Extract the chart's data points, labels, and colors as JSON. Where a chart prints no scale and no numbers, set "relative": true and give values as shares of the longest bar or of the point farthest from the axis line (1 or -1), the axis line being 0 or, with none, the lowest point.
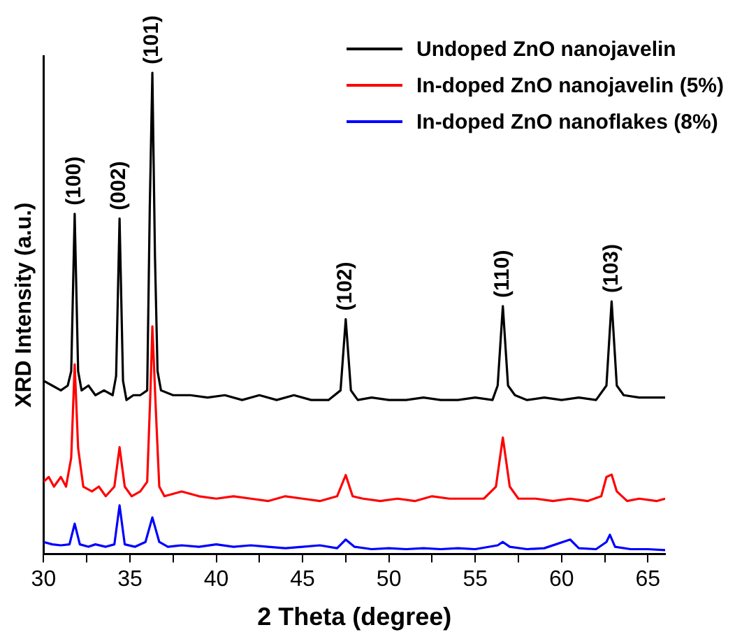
{
  "chart_data": {
    "type": "line",
    "xlabel": "2 Theta (degree)",
    "ylabel": "XRD Intensity (a.u.)",
    "relative": true,
    "xlim": [
      30,
      66
    ],
    "xticks": [
      30,
      {
        "value": 32.5,
        "label": null
      },
      35,
      {
        "value": 37.5,
        "label": null
      },
      40,
      {
        "value": 42.5,
        "label": null
      },
      45,
      {
        "value": 47.5,
        "label": null
      },
      50,
      {
        "value": 52.5,
        "label": null
      },
      55,
      {
        "value": 57.5,
        "label": null
      },
      60,
      {
        "value": 62.5,
        "label": null
      },
      65
    ],
    "legend": "top right",
    "grid": false,
    "marker": "none",
    "line_style": "solid",
    "series": [
      {
        "name": "Undoped ZnO nanojavelin",
        "color": "#000000",
        "x": [
          30,
          30.5,
          31,
          31.4,
          31.6,
          31.8,
          32.0,
          32.2,
          32.6,
          33,
          33.5,
          34.0,
          34.2,
          34.4,
          34.6,
          34.8,
          35.2,
          35.6,
          36.0,
          36.15,
          36.3,
          36.45,
          36.6,
          36.8,
          37.5,
          38.5,
          39.5,
          40.5,
          41.5,
          42.5,
          43.5,
          44.5,
          45.5,
          46.5,
          47.2,
          47.5,
          47.8,
          48.2,
          49,
          50,
          51,
          52,
          53,
          54,
          55,
          56,
          56.3,
          56.6,
          56.9,
          57.3,
          58,
          59,
          60,
          61,
          62,
          62.6,
          62.9,
          63.2,
          63.6,
          64.5,
          65.5,
          66
        ],
        "values": [
          0.36,
          0.35,
          0.34,
          0.35,
          0.38,
          0.707,
          0.38,
          0.34,
          0.35,
          0.33,
          0.34,
          0.33,
          0.37,
          0.697,
          0.36,
          0.32,
          0.33,
          0.33,
          0.34,
          0.72,
          1,
          0.62,
          0.38,
          0.34,
          0.33,
          0.33,
          0.325,
          0.33,
          0.32,
          0.33,
          0.32,
          0.33,
          0.32,
          0.32,
          0.34,
          0.488,
          0.34,
          0.32,
          0.325,
          0.32,
          0.32,
          0.325,
          0.32,
          0.32,
          0.325,
          0.32,
          0.35,
          0.515,
          0.35,
          0.33,
          0.32,
          0.325,
          0.32,
          0.325,
          0.32,
          0.35,
          0.525,
          0.35,
          0.33,
          0.325,
          0.325,
          0.325
        ]
      },
      {
        "name": "In-doped ZnO nanojavelin (5%)",
        "color": "#ff0000",
        "x": [
          30,
          30.3,
          30.6,
          31,
          31.3,
          31.6,
          31.8,
          32.0,
          32.3,
          32.8,
          33.2,
          33.6,
          34.1,
          34.4,
          34.7,
          35.1,
          35.6,
          36.0,
          36.2,
          36.3,
          36.5,
          36.7,
          37,
          38,
          39,
          40,
          41,
          42,
          43,
          44,
          45,
          46,
          47,
          47.5,
          47.9,
          48.5,
          49.5,
          50.5,
          51.5,
          52.5,
          53.5,
          54.5,
          55.5,
          56.2,
          56.6,
          57,
          57.5,
          58.5,
          59.5,
          60.5,
          61.5,
          62.3,
          62.6,
          62.9,
          63.2,
          63.8,
          64.5,
          65.5,
          66
        ],
        "values": [
          0.15,
          0.16,
          0.14,
          0.16,
          0.14,
          0.2,
          0.394,
          0.22,
          0.14,
          0.13,
          0.14,
          0.12,
          0.14,
          0.222,
          0.14,
          0.12,
          0.13,
          0.15,
          0.35,
          0.473,
          0.3,
          0.14,
          0.12,
          0.13,
          0.12,
          0.115,
          0.12,
          0.115,
          0.11,
          0.12,
          0.115,
          0.11,
          0.12,
          0.164,
          0.12,
          0.115,
          0.11,
          0.115,
          0.11,
          0.12,
          0.115,
          0.115,
          0.115,
          0.14,
          0.242,
          0.14,
          0.115,
          0.115,
          0.11,
          0.115,
          0.11,
          0.12,
          0.16,
          0.165,
          0.13,
          0.11,
          0.115,
          0.11,
          0.115
        ]
      },
      {
        "name": "In-doped ZnO nanoflakes (8%)",
        "color": "#0000ff",
        "x": [
          30,
          30.5,
          31,
          31.5,
          31.8,
          32.1,
          32.6,
          33,
          33.6,
          34.1,
          34.4,
          34.7,
          35.3,
          35.9,
          36.3,
          36.7,
          37.2,
          38,
          39,
          40,
          41,
          42,
          43,
          44,
          45,
          46,
          47,
          47.5,
          48,
          49,
          50,
          51,
          52,
          53,
          54,
          55,
          56.3,
          56.6,
          57,
          58,
          59,
          60.5,
          61,
          62,
          62.6,
          62.8,
          63.1,
          64,
          65,
          66
        ],
        "values": [
          0.025,
          0.02,
          0.018,
          0.02,
          0.063,
          0.02,
          0.015,
          0.02,
          0.015,
          0.02,
          0.101,
          0.02,
          0.015,
          0.025,
          0.076,
          0.025,
          0.015,
          0.018,
          0.015,
          0.02,
          0.015,
          0.018,
          0.015,
          0.012,
          0.015,
          0.018,
          0.012,
          0.03,
          0.015,
          0.01,
          0.012,
          0.01,
          0.012,
          0.01,
          0.012,
          0.01,
          0.018,
          0.025,
          0.015,
          0.01,
          0.012,
          0.03,
          0.012,
          0.01,
          0.025,
          0.04,
          0.015,
          0.01,
          0.01,
          0.008
        ]
      }
    ],
    "annotations": [
      {
        "text": "(100)",
        "x": 31.8,
        "y": 0.707
      },
      {
        "text": "(002)",
        "x": 34.4,
        "y": 0.697
      },
      {
        "text": "(101)",
        "x": 36.3,
        "y": 1
      },
      {
        "text": "(102)",
        "x": 47.5,
        "y": 0.488
      },
      {
        "text": "(110)",
        "x": 56.6,
        "y": 0.515
      },
      {
        "text": "(103)",
        "x": 62.9,
        "y": 0.525
      }
    ]
  }
}
